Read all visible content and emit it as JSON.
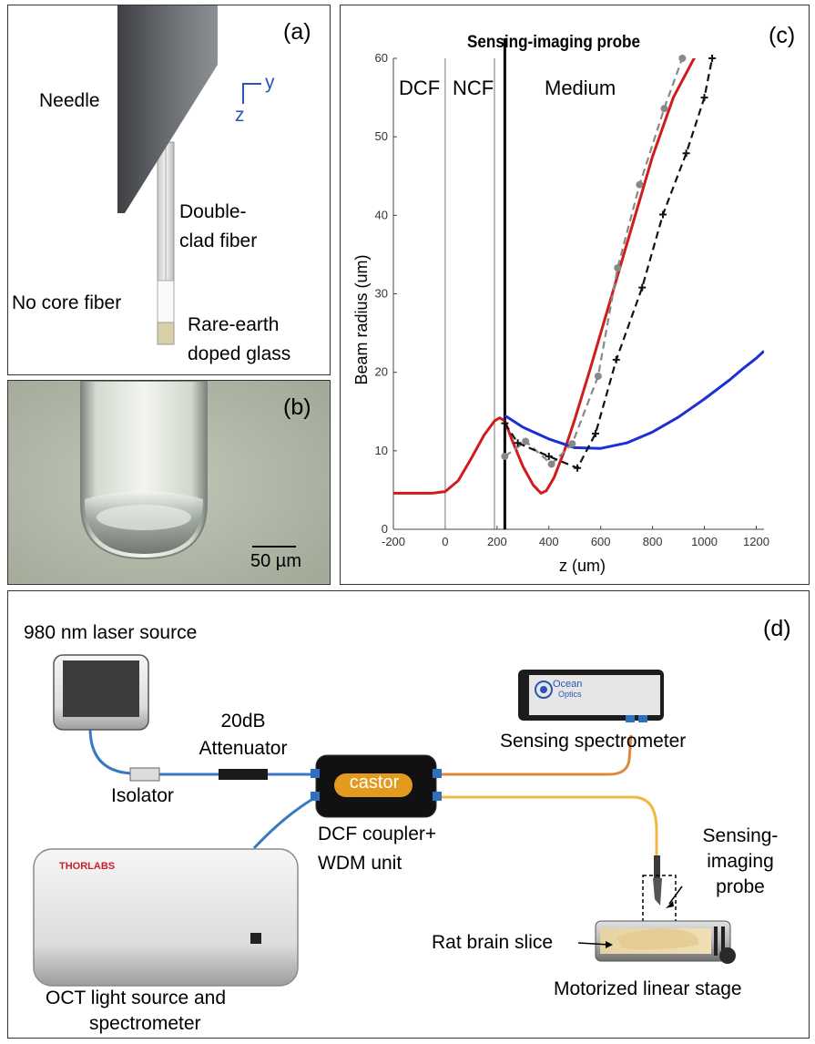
{
  "panel_a": {
    "letter": "(a)",
    "needle": "Needle",
    "axis_y": "y",
    "axis_z": "z",
    "double_clad_1": "Double-",
    "double_clad_2": "clad fiber",
    "no_core": "No core fiber",
    "rare_earth_1": "Rare-earth",
    "rare_earth_2": "doped glass",
    "colors": {
      "needle_dark": "#3d3f43",
      "needle_light": "#8d9095",
      "glass": "#d8cfa8",
      "axis": "#2a55b5"
    }
  },
  "panel_b": {
    "letter": "(b)",
    "scale_label": "50 µm",
    "colors": {
      "background": "#aeb4a4",
      "fiber": "#e8ece4"
    }
  },
  "panel_c": {
    "letter": "(c)",
    "title": "Sensing-imaging probe",
    "region_dcf": "DCF",
    "region_ncf": "NCF",
    "region_medium": "Medium",
    "xlabel": "z (um)",
    "ylabel": "Beam radius (um)",
    "xticks": [
      "-200",
      "0",
      "200",
      "400",
      "600",
      "800",
      "1000",
      "1200"
    ],
    "yticks": [
      "0",
      "10",
      "20",
      "30",
      "40",
      "50",
      "60"
    ]
  },
  "chart_data": {
    "type": "line",
    "title": "Sensing-imaging probe",
    "xlabel": "z (um)",
    "ylabel": "Beam radius (um)",
    "xlim": [
      -200,
      1230
    ],
    "ylim": [
      0,
      60
    ],
    "grid": false,
    "region_boundaries": [
      0,
      190,
      230
    ],
    "series": [
      {
        "style": "solid",
        "color": "#d11c1c",
        "x": [
          -200,
          -50,
          0,
          50,
          100,
          150,
          190,
          210,
          230,
          260,
          300,
          340,
          370,
          390,
          420,
          460,
          500,
          560,
          640,
          720,
          800,
          880,
          960,
          1010
        ],
        "y": [
          4.6,
          4.6,
          4.8,
          6.2,
          9.0,
          12.0,
          13.8,
          14.2,
          13.8,
          11.2,
          8.0,
          5.6,
          4.6,
          4.9,
          6.6,
          10.0,
          14.0,
          20.5,
          29.5,
          38.5,
          47.5,
          55.0,
          60.0,
          62.0
        ]
      },
      {
        "style": "solid",
        "color": "#1c2fd6",
        "x": [
          230,
          300,
          400,
          500,
          600,
          700,
          800,
          900,
          1000,
          1100,
          1150,
          1200,
          1230
        ],
        "y": [
          14.5,
          13.0,
          11.5,
          10.4,
          10.3,
          11.0,
          12.4,
          14.3,
          16.6,
          19.1,
          20.5,
          21.8,
          22.7
        ]
      },
      {
        "style": "dashed",
        "color": "#888888",
        "marker": "circle",
        "x": [
          230,
          310,
          410,
          490,
          590,
          665,
          750,
          845,
          915
        ],
        "y": [
          9.3,
          11.2,
          8.3,
          10.9,
          19.5,
          33.3,
          43.9,
          53.6,
          60.0
        ]
      },
      {
        "style": "dashed",
        "color": "#111111",
        "marker": "plus",
        "x": [
          230,
          280,
          400,
          510,
          580,
          660,
          760,
          840,
          930,
          1000,
          1030
        ],
        "y": [
          13.5,
          11.0,
          9.3,
          7.8,
          12.2,
          21.6,
          30.8,
          40.1,
          47.9,
          55.0,
          60.0
        ]
      }
    ]
  },
  "panel_d": {
    "letter": "(d)",
    "laser": "980 nm laser source",
    "attenuator_1": "20dB",
    "attenuator_2": "Attenuator",
    "isolator": "Isolator",
    "coupler_brand": "castor",
    "coupler_1": "DCF coupler+",
    "coupler_2": "WDM unit",
    "oct_1": "OCT light source and",
    "oct_2": "spectrometer",
    "oct_brand": "THORLABS",
    "spectrometer": "Sensing spectrometer",
    "spectro_brand_1": "Ocean",
    "spectro_brand_2": "Optics",
    "probe_1": "Sensing-",
    "probe_2": "imaging",
    "probe_3": "probe",
    "brain": "Rat brain slice",
    "stage": "Motorized linear stage",
    "colors": {
      "fiber_blue": "#3a78c4",
      "fiber_orange": "#d98a3c",
      "fiber_yellow": "#f0b841",
      "coupler": "#111111",
      "coupler_label": "#e39b1f",
      "thorlabs": "#c8202a"
    }
  }
}
